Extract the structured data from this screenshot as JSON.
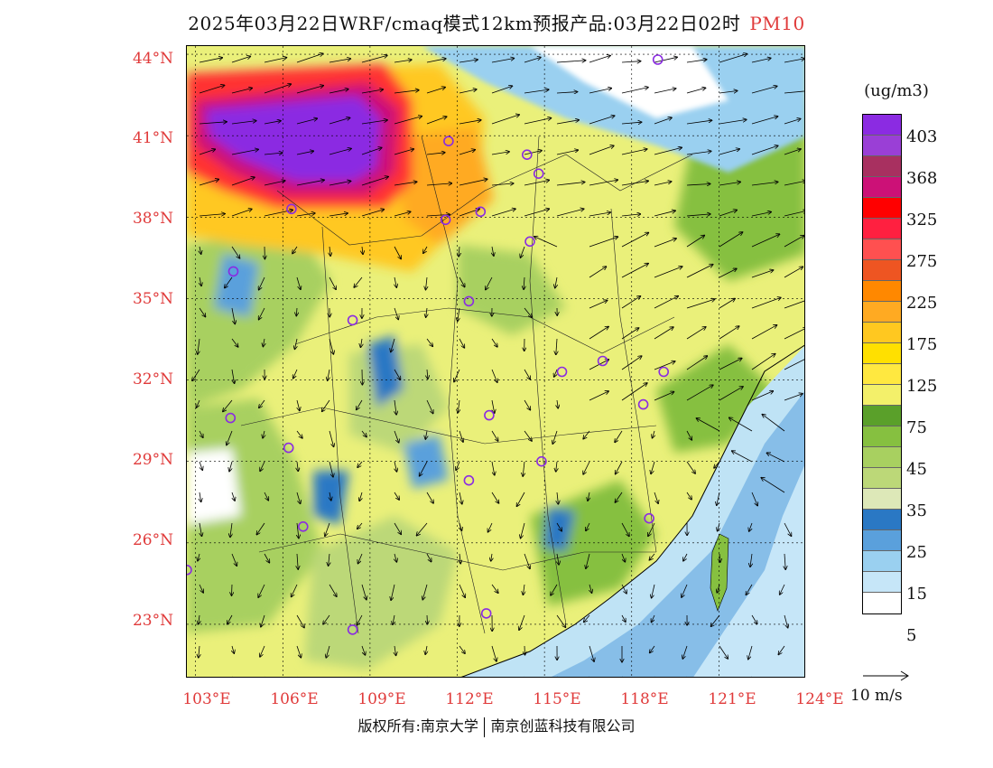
{
  "title": {
    "main": "2025年03月22日WRF/cmaq模式12km预报产品:03月22日02时",
    "pollutant": "PM10"
  },
  "map": {
    "lat_labels": [
      "44°N",
      "41°N",
      "38°N",
      "35°N",
      "32°N",
      "29°N",
      "26°N",
      "23°N"
    ],
    "lon_labels": [
      "103°E",
      "106°E",
      "109°E",
      "112°E",
      "115°E",
      "118°E",
      "121°E",
      "124°E"
    ],
    "lat_range": [
      21,
      44.3
    ],
    "lon_range": [
      102.7,
      124
    ],
    "sea_color": "#bfe3f5",
    "station_marker_color": "#8a2be2",
    "stations": [
      {
        "lat": 43.8,
        "lon": 118.9
      },
      {
        "lat": 40.8,
        "lon": 111.7
      },
      {
        "lat": 40.3,
        "lon": 114.4
      },
      {
        "lat": 39.6,
        "lon": 114.8
      },
      {
        "lat": 38.3,
        "lon": 106.3
      },
      {
        "lat": 38.2,
        "lon": 112.8
      },
      {
        "lat": 37.9,
        "lon": 111.6
      },
      {
        "lat": 37.1,
        "lon": 114.5
      },
      {
        "lat": 36.0,
        "lon": 104.3
      },
      {
        "lat": 34.9,
        "lon": 112.4
      },
      {
        "lat": 34.2,
        "lon": 108.4
      },
      {
        "lat": 32.7,
        "lon": 117.0
      },
      {
        "lat": 32.3,
        "lon": 115.6
      },
      {
        "lat": 32.3,
        "lon": 119.1
      },
      {
        "lat": 31.1,
        "lon": 118.4
      },
      {
        "lat": 30.6,
        "lon": 104.2
      },
      {
        "lat": 30.7,
        "lon": 113.1
      },
      {
        "lat": 29.5,
        "lon": 106.2
      },
      {
        "lat": 29.0,
        "lon": 114.9
      },
      {
        "lat": 28.3,
        "lon": 112.4
      },
      {
        "lat": 26.6,
        "lon": 106.7
      },
      {
        "lat": 26.9,
        "lon": 118.6
      },
      {
        "lat": 25.0,
        "lon": 102.7
      },
      {
        "lat": 23.4,
        "lon": 113.0
      },
      {
        "lat": 22.8,
        "lon": 108.4
      }
    ]
  },
  "legend": {
    "unit": "(ug/m3)",
    "swatches": [
      "#8b2be2",
      "#9a3fd6",
      "#a83060",
      "#cc1177",
      "#ff0000",
      "#ff2040",
      "#ff5050",
      "#ee5522",
      "#ff8800",
      "#ffaa22",
      "#ffc820",
      "#ffe000",
      "#ffe840",
      "#f3f06a",
      "#5aa02a",
      "#86c040",
      "#a8d060",
      "#bcd878",
      "#dde8b8",
      "#2a78c4",
      "#5aa0dc",
      "#9ad0f0",
      "#c6e6f8",
      "#ffffff"
    ],
    "labels": [
      "403",
      "368",
      "325",
      "275",
      "225",
      "175",
      "125",
      "75",
      "45",
      "35",
      "25",
      "15",
      "5"
    ],
    "wind_scale": "10 m/s"
  },
  "footer": {
    "left": "版权所有:南京大学",
    "right": "南京创蓝科技有限公司"
  }
}
